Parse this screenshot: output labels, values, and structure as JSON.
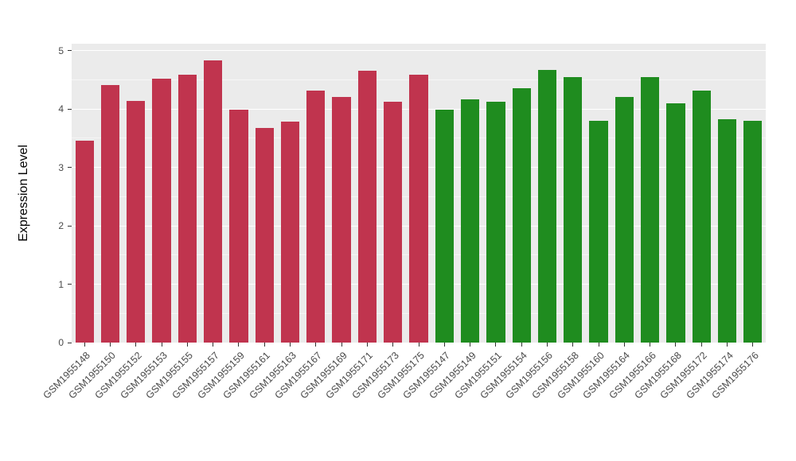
{
  "chart_data": {
    "type": "bar",
    "title": "",
    "xlabel": "",
    "ylabel": "Expression Level",
    "ylim": [
      0,
      5
    ],
    "yticks": [
      0,
      1,
      2,
      3,
      4,
      5
    ],
    "grid": "major+minor",
    "legend": "none",
    "panel_background": "#EBEBEB",
    "categories": [
      "GSM1955148",
      "GSM1955150",
      "GSM1955152",
      "GSM1955153",
      "GSM1955155",
      "GSM1955157",
      "GSM1955159",
      "GSM1955161",
      "GSM1955163",
      "GSM1955167",
      "GSM1955169",
      "GSM1955171",
      "GSM1955173",
      "GSM1955175",
      "GSM1955147",
      "GSM1955149",
      "GSM1955151",
      "GSM1955154",
      "GSM1955156",
      "GSM1955158",
      "GSM1955160",
      "GSM1955164",
      "GSM1955166",
      "GSM1955168",
      "GSM1955172",
      "GSM1955174",
      "GSM1955176"
    ],
    "values": [
      3.46,
      4.41,
      4.14,
      4.52,
      4.58,
      4.83,
      3.99,
      3.68,
      3.78,
      4.31,
      4.2,
      4.65,
      4.12,
      4.58,
      3.99,
      4.16,
      4.12,
      4.36,
      4.67,
      4.55,
      3.79,
      4.21,
      4.54,
      4.1,
      4.31,
      3.83,
      3.79
    ],
    "bar_groups": [
      "red",
      "red",
      "red",
      "red",
      "red",
      "red",
      "red",
      "red",
      "red",
      "red",
      "red",
      "red",
      "red",
      "red",
      "green",
      "green",
      "green",
      "green",
      "green",
      "green",
      "green",
      "green",
      "green",
      "green",
      "green",
      "green",
      "green"
    ],
    "group_colors": {
      "red": "#C0344E",
      "green": "#1F8C1F"
    }
  }
}
